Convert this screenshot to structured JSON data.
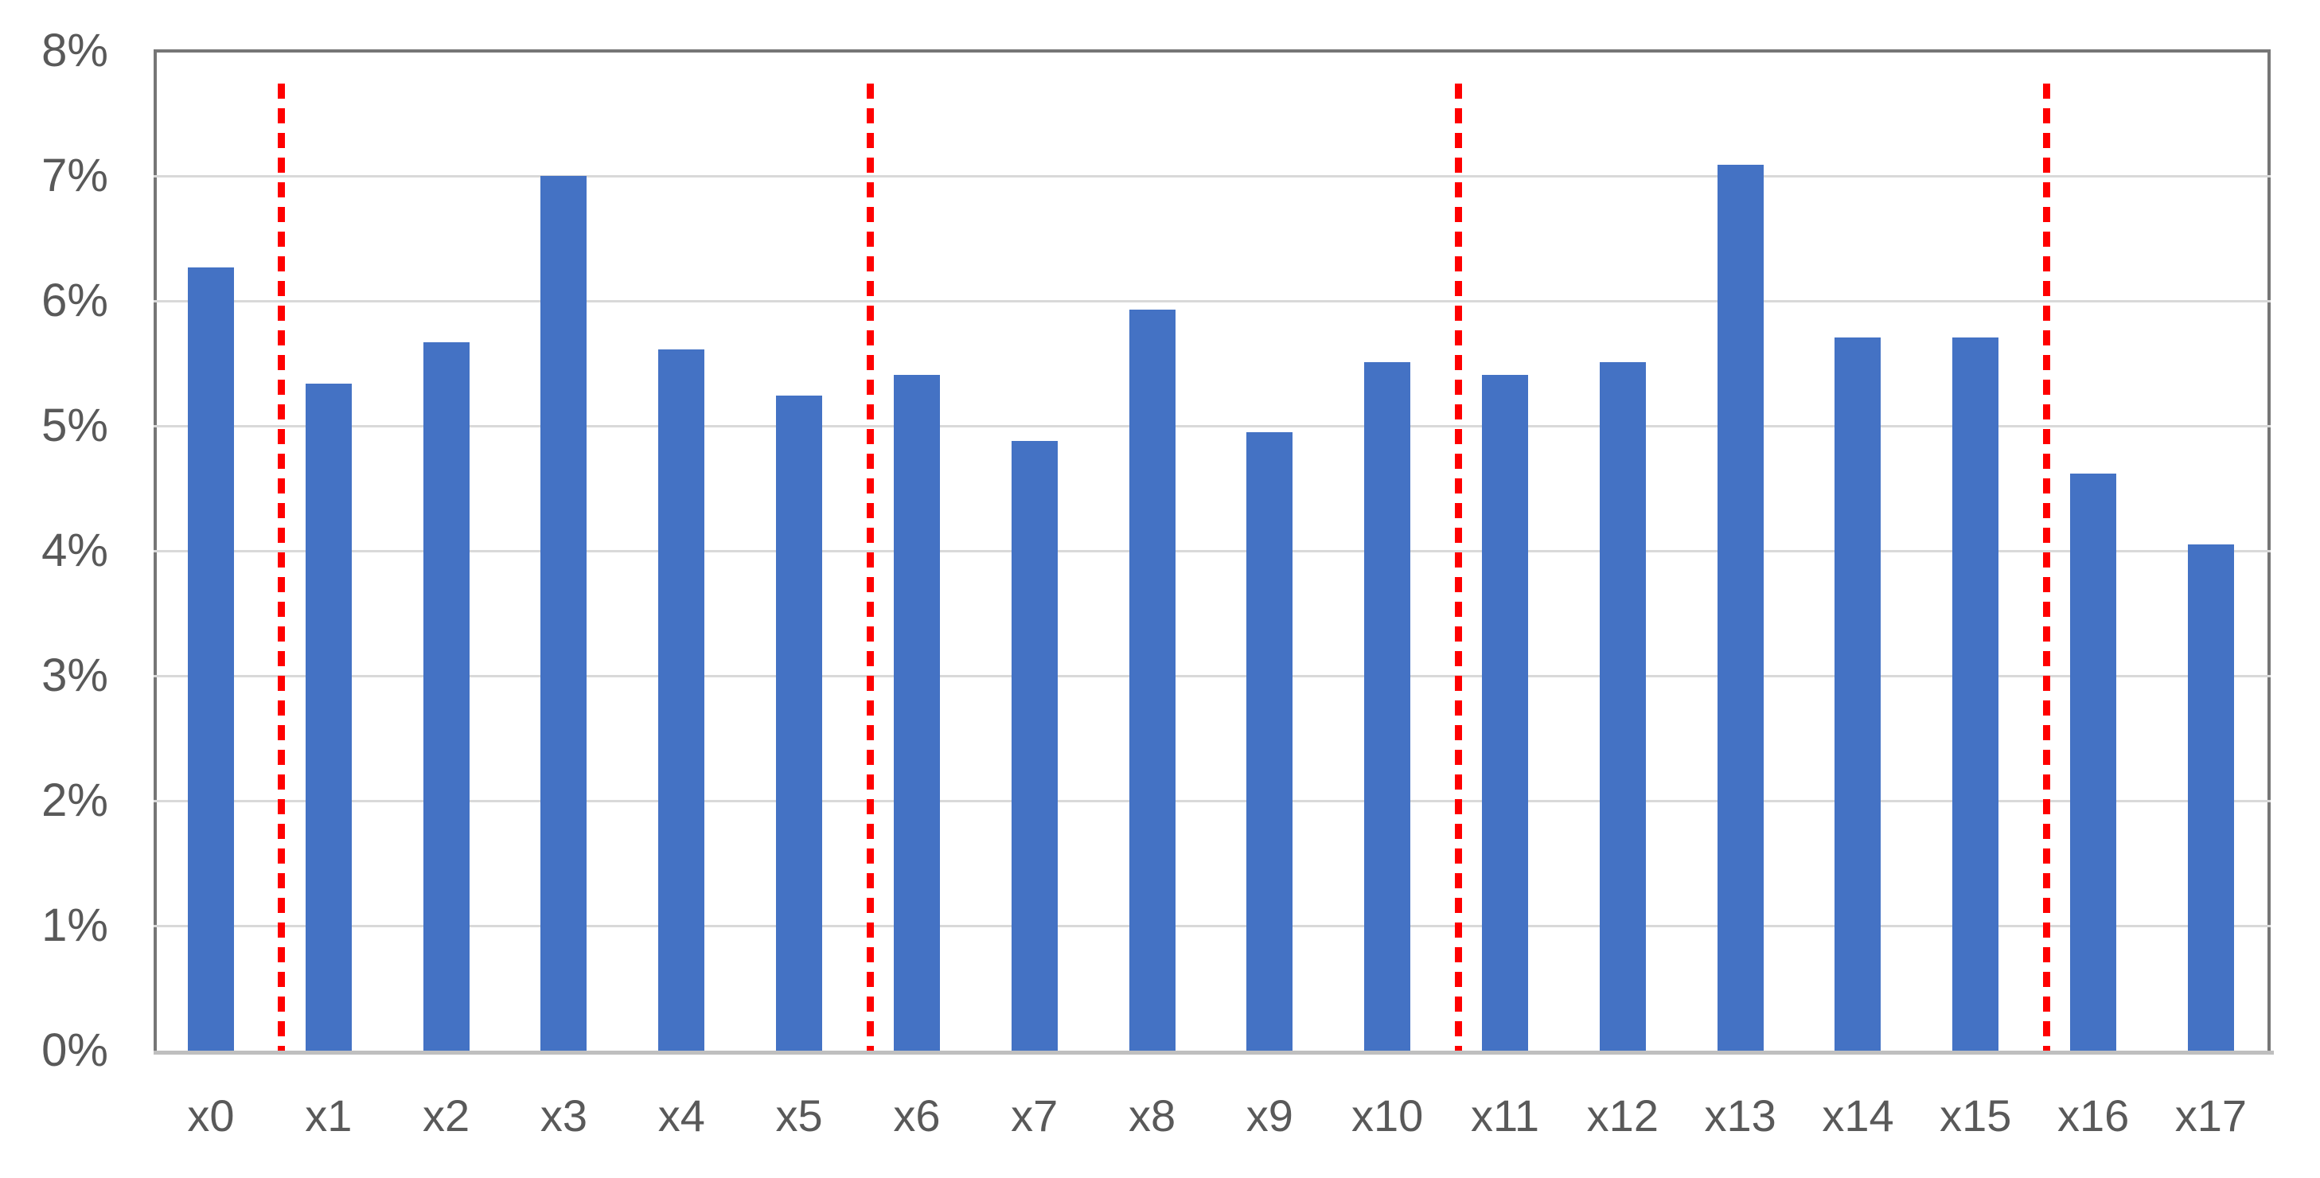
{
  "chart_data": {
    "type": "bar",
    "title": "",
    "xlabel": "",
    "ylabel": "",
    "categories": [
      "x0",
      "x1",
      "x2",
      "x3",
      "x4",
      "x5",
      "x6",
      "x7",
      "x8",
      "x9",
      "x10",
      "x11",
      "x12",
      "x13",
      "x14",
      "x15",
      "x16",
      "x17"
    ],
    "values": [
      6.27,
      5.34,
      5.67,
      7.0,
      5.61,
      5.24,
      5.41,
      4.88,
      5.93,
      4.95,
      5.51,
      5.41,
      5.51,
      7.09,
      5.71,
      5.71,
      4.62,
      4.05
    ],
    "value_unit": "%",
    "ylim": [
      0,
      8
    ],
    "ytick_step": 1,
    "ytick_labels": [
      "0%",
      "1%",
      "2%",
      "3%",
      "4%",
      "5%",
      "6%",
      "7%",
      "8%"
    ],
    "grid": true,
    "legend": "none",
    "separators_after_index": [
      0,
      5,
      10,
      15
    ],
    "separator_style": "dashed-vertical",
    "colors": {
      "bar": "#4472C4",
      "separator": "#FF0000",
      "gridline": "#D9D9D9",
      "axis_line": "#BFBFBF",
      "plot_border": "#767676",
      "tick_text": "#595959",
      "background": "#FFFFFF"
    }
  }
}
